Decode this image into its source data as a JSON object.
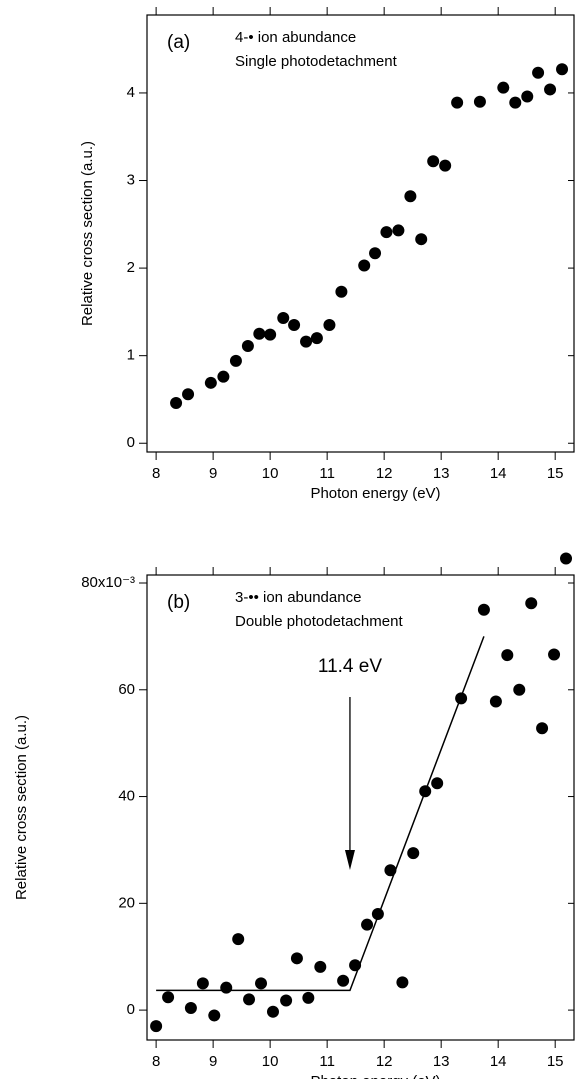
{
  "chart_data": [
    {
      "type": "scatter",
      "panel_label": "(a)",
      "annotations": [
        "4-• ion abundance",
        "Single photodetachment"
      ],
      "xlabel": "Photon energy (eV)",
      "ylabel": "Relative cross section (a.u.)",
      "color": "#000000",
      "x": [
        8.35,
        8.56,
        8.96,
        9.18,
        9.4,
        9.61,
        9.81,
        10.0,
        10.23,
        10.42,
        10.63,
        10.82,
        11.04,
        11.25,
        11.65,
        11.84,
        12.04,
        12.25,
        12.46,
        12.65,
        12.86,
        13.07,
        13.28,
        13.68,
        14.09,
        14.3,
        14.51,
        14.7,
        14.91,
        15.12
      ],
      "values": [
        0.46,
        0.56,
        0.69,
        0.76,
        0.94,
        1.11,
        1.25,
        1.24,
        1.43,
        1.35,
        1.16,
        1.2,
        1.35,
        1.73,
        2.03,
        2.17,
        2.41,
        2.43,
        2.82,
        2.33,
        3.22,
        3.17,
        3.89,
        3.9,
        4.06,
        3.89,
        3.96,
        4.23,
        4.04,
        4.27
      ],
      "xlim": [
        7.84,
        15.33
      ],
      "xticks": [
        8,
        9,
        10,
        11,
        12,
        13,
        14,
        15
      ],
      "ylim": [
        -0.1,
        4.89
      ],
      "yticks": [
        0,
        1,
        2,
        3,
        4
      ]
    },
    {
      "type": "scatter",
      "panel_label": "(b)",
      "annotations": [
        "3-•• ion abundance",
        "Double photodetachment"
      ],
      "xlabel": "Photon energy (eV)",
      "ylabel": "Relative cross section (a.u.)",
      "color": "#000000",
      "x": [
        8.0,
        8.21,
        8.61,
        8.82,
        9.02,
        9.23,
        9.44,
        9.63,
        9.84,
        10.05,
        10.28,
        10.47,
        10.67,
        10.88,
        11.28,
        11.49,
        11.7,
        11.89,
        12.11,
        12.32,
        12.51,
        12.72,
        12.93,
        13.35,
        13.75,
        13.96,
        14.16,
        14.37,
        14.58,
        14.77,
        14.98,
        15.19
      ],
      "values": [
        -3,
        2.4,
        0.4,
        5,
        -1,
        4.2,
        13.3,
        2,
        5,
        -0.3,
        1.8,
        9.7,
        2.3,
        8.1,
        5.5,
        8.4,
        16,
        18,
        26.2,
        5.2,
        29.4,
        41,
        42.5,
        58.4,
        75,
        57.8,
        66.5,
        60,
        76.2,
        52.8,
        66.6,
        84.6
      ],
      "fit": {
        "x": [
          8.0,
          11.4,
          13.75
        ],
        "values": [
          3.7,
          3.7,
          70
        ]
      },
      "arrow": {
        "label": "11.4 eV",
        "x": 11.4
      },
      "xlim": [
        7.84,
        15.33
      ],
      "xticks": [
        8,
        9,
        10,
        11,
        12,
        13,
        14,
        15
      ],
      "ylim": [
        -5.6,
        81.5
      ],
      "yticks": [
        0,
        20,
        40,
        60,
        {
          "value": 80,
          "label": "80x10⁻³"
        }
      ]
    }
  ]
}
